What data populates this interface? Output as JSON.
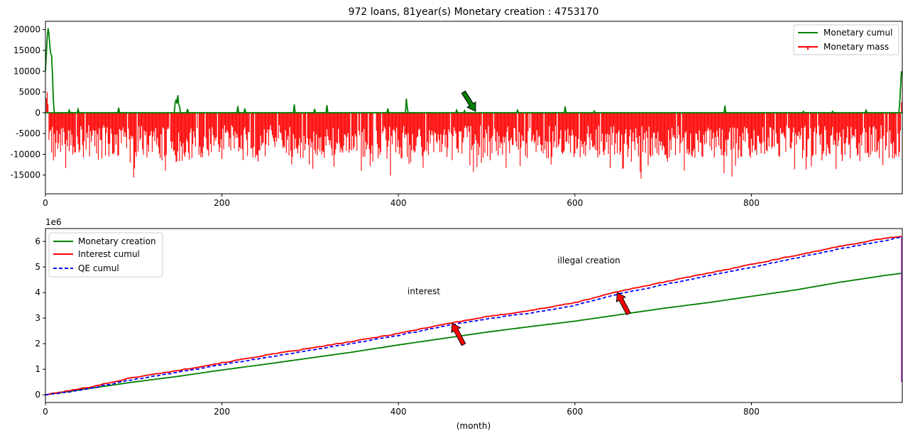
{
  "chart_data": [
    {
      "type": "line",
      "title": "972 loans, 81year(s) Monetary creation : 4753170",
      "xlabel": "",
      "ylabel": "",
      "xlim": [
        0,
        971
      ],
      "ylim": [
        -19500,
        22000
      ],
      "xticks": [
        0,
        200,
        400,
        600,
        800
      ],
      "yticks": [
        -15000,
        -10000,
        -5000,
        0,
        5000,
        10000,
        15000,
        20000
      ],
      "grid": false,
      "legend_position": "top-right",
      "legend": [
        "Monetary cumul",
        "Monetary mass"
      ],
      "colors": {
        "cumul": "#008000",
        "mass": "#ff0000",
        "arrow": "#008000"
      },
      "arrow_annotation": {
        "text": "",
        "x": 485,
        "y": 0
      },
      "series": [
        {
          "name": "Monetary cumul",
          "type": "line",
          "peaks": [
            [
              0,
              10000
            ],
            [
              1,
              14000
            ],
            [
              2,
              18000
            ],
            [
              3,
              20300
            ],
            [
              4,
              19000
            ],
            [
              5,
              16000
            ],
            [
              6,
              14200
            ],
            [
              7,
              13800
            ],
            [
              8,
              9000
            ],
            [
              9,
              3000
            ],
            [
              10,
              0
            ],
            [
              27,
              600
            ],
            [
              37,
              800
            ],
            [
              83,
              1200
            ],
            [
              147,
              2500
            ],
            [
              148,
              3000
            ],
            [
              149,
              2200
            ],
            [
              150,
              4200
            ],
            [
              151,
              2000
            ],
            [
              152,
              1500
            ],
            [
              161,
              900
            ],
            [
              218,
              1600
            ],
            [
              226,
              1000
            ],
            [
              282,
              2000
            ],
            [
              305,
              900
            ],
            [
              319,
              1800
            ],
            [
              388,
              1000
            ],
            [
              409,
              3400
            ],
            [
              410,
              1200
            ],
            [
              466,
              600
            ],
            [
              475,
              500
            ],
            [
              535,
              600
            ],
            [
              589,
              1500
            ],
            [
              622,
              400
            ],
            [
              770,
              1700
            ],
            [
              859,
              300
            ],
            [
              892,
              300
            ],
            [
              930,
              600
            ],
            [
              968,
              2000
            ],
            [
              969,
              6000
            ],
            [
              970,
              10000
            ]
          ]
        },
        {
          "name": "Monetary mass",
          "type": "bar",
          "start_values": [
            0,
            3500,
            5000,
            2000
          ],
          "end_values": [
            2500,
            4000
          ],
          "range_note": "dense negative monthly values between -3000 and -17400"
        }
      ]
    },
    {
      "type": "line",
      "title": "",
      "xlabel": "(month)",
      "ylabel": "",
      "y_multiplier_label": "1e6",
      "xlim": [
        0,
        971
      ],
      "ylim": [
        -0.3,
        6.5
      ],
      "xticks": [
        0,
        200,
        400,
        600,
        800
      ],
      "yticks": [
        0,
        1,
        2,
        3,
        4,
        5,
        6
      ],
      "grid": false,
      "legend_position": "top-left",
      "colors": {
        "creation": "#008000",
        "interest": "#ff0000",
        "qe": "#0000ff",
        "arrow": "#ff0000"
      },
      "series": [
        {
          "name": "Monetary creation",
          "style": "solid",
          "x": [
            0,
            20,
            50,
            100,
            150,
            200,
            250,
            300,
            350,
            400,
            450,
            500,
            550,
            600,
            650,
            700,
            750,
            800,
            850,
            900,
            950,
            970
          ],
          "y": [
            0,
            0.1,
            0.25,
            0.5,
            0.72,
            0.97,
            1.2,
            1.44,
            1.68,
            1.95,
            2.2,
            2.45,
            2.67,
            2.88,
            3.13,
            3.38,
            3.6,
            3.85,
            4.1,
            4.4,
            4.66,
            4.75
          ]
        },
        {
          "name": "Interest cumul",
          "style": "solid",
          "x": [
            0,
            20,
            50,
            100,
            150,
            200,
            250,
            300,
            350,
            400,
            450,
            500,
            550,
            600,
            650,
            700,
            750,
            800,
            850,
            900,
            950,
            970
          ],
          "y": [
            0,
            0.12,
            0.3,
            0.68,
            0.95,
            1.25,
            1.55,
            1.82,
            2.1,
            2.4,
            2.75,
            3.05,
            3.3,
            3.6,
            4.05,
            4.4,
            4.75,
            5.1,
            5.45,
            5.8,
            6.12,
            6.2
          ]
        },
        {
          "name": "QE cumul",
          "style": "dashed",
          "x": [
            0,
            20,
            50,
            100,
            150,
            200,
            250,
            300,
            350,
            400,
            450,
            500,
            550,
            600,
            650,
            700,
            750,
            800,
            850,
            900,
            950,
            970
          ],
          "y": [
            0,
            0.08,
            0.25,
            0.6,
            0.88,
            1.18,
            1.46,
            1.74,
            2.02,
            2.32,
            2.68,
            2.97,
            3.2,
            3.5,
            3.95,
            4.3,
            4.65,
            4.98,
            5.35,
            5.7,
            6.02,
            6.17
          ]
        }
      ],
      "annotations": [
        {
          "text": "interest",
          "x": 461,
          "y": 2.8
        },
        {
          "text": "illegal creation",
          "x": 648,
          "y": 4.0
        }
      ]
    }
  ]
}
